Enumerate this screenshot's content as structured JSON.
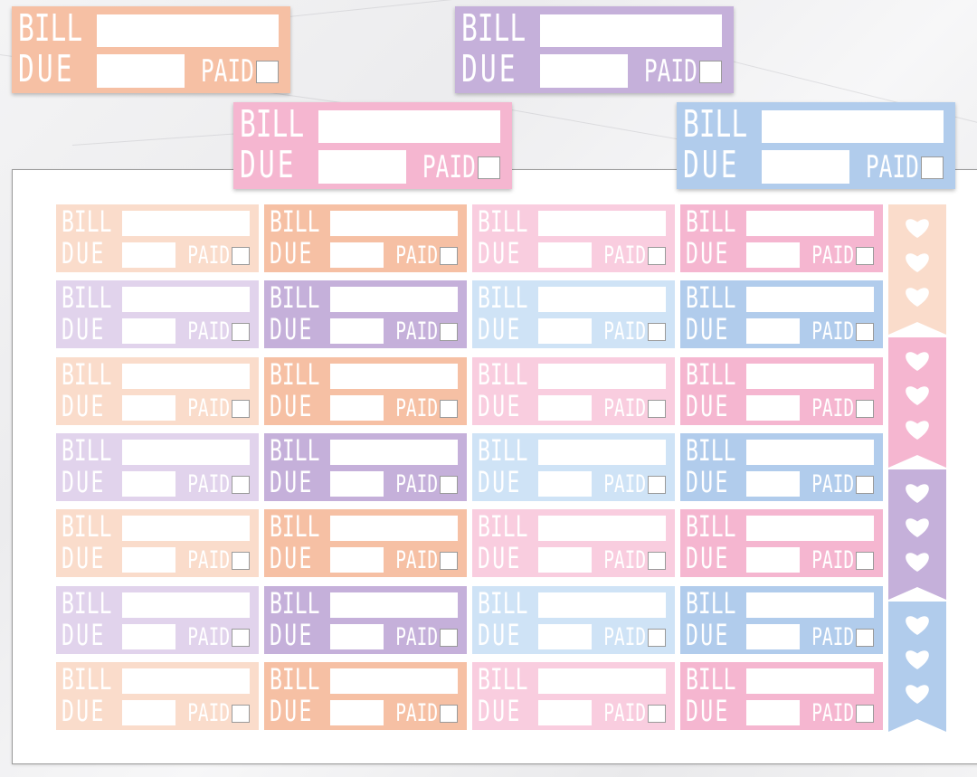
{
  "sticker_text": {
    "bill": "BILL",
    "due": "DUE",
    "paid": "PAID"
  },
  "colors": {
    "peach": "#f6c0a4",
    "peach_light": "#fadccb",
    "lavender": "#c5b0da",
    "lavender_light": "#e1d3ec",
    "pink": "#f5b6d0",
    "pink_light": "#f9cddf",
    "blue": "#b1ccec",
    "blue_light": "#cfe3f6",
    "sheet": "#ffffff"
  },
  "large_stickers": [
    "peach",
    "lavender",
    "pink",
    "blue"
  ],
  "grid_rows": [
    [
      "peach_light",
      "peach",
      "pink_light",
      "pink"
    ],
    [
      "lavender_light",
      "lavender",
      "blue_light",
      "blue"
    ],
    [
      "peach_light",
      "peach",
      "pink_light",
      "pink"
    ],
    [
      "lavender_light",
      "lavender",
      "blue_light",
      "blue"
    ],
    [
      "peach_light",
      "peach",
      "pink_light",
      "pink"
    ],
    [
      "lavender_light",
      "lavender",
      "blue_light",
      "blue"
    ],
    [
      "peach_light",
      "peach",
      "pink_light",
      "pink"
    ]
  ],
  "heart_flags": [
    {
      "color": "peach_light",
      "hearts": 3,
      "icon": "heart-icon"
    },
    {
      "color": "pink",
      "hearts": 3,
      "icon": "heart-icon"
    },
    {
      "color": "lavender",
      "hearts": 3,
      "icon": "heart-icon"
    },
    {
      "color": "blue",
      "hearts": 3,
      "icon": "heart-icon"
    }
  ]
}
